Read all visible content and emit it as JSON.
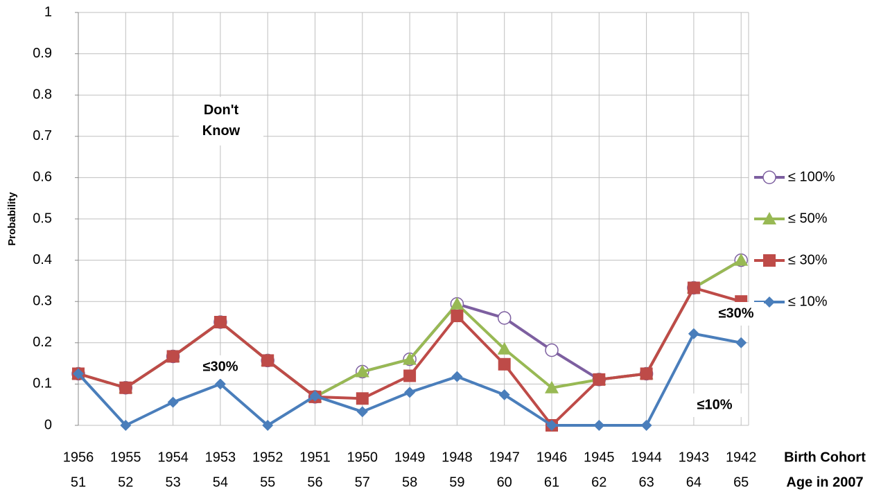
{
  "chart_data": {
    "type": "line",
    "y_label": "Probability",
    "x_label": "Birth Cohort",
    "x2_label": "Age in 2007",
    "categories": [
      "1956",
      "1955",
      "1954",
      "1953",
      "1952",
      "1951",
      "1950",
      "1949",
      "1948",
      "1947",
      "1946",
      "1945",
      "1944",
      "1943",
      "1942"
    ],
    "ages": [
      "51",
      "52",
      "53",
      "54",
      "55",
      "56",
      "57",
      "58",
      "59",
      "60",
      "61",
      "62",
      "63",
      "64",
      "65"
    ],
    "ylim": [
      0,
      1
    ],
    "yticks": [
      0,
      0.1,
      0.2,
      0.3,
      0.4,
      0.5,
      0.6,
      0.7,
      0.8,
      0.9,
      1
    ],
    "grid": true,
    "legend": "right",
    "series": [
      {
        "name": "≤ 100%",
        "color": "#7d5fa0",
        "marker": "circle-open",
        "values": [
          0.125,
          0.091,
          0.167,
          0.25,
          0.157,
          0.069,
          0.13,
          0.16,
          0.294,
          0.26,
          0.182,
          0.111,
          0.125,
          0.333,
          0.4
        ]
      },
      {
        "name": "≤ 50%",
        "color": "#98b954",
        "marker": "triangle",
        "values": [
          0.125,
          0.091,
          0.167,
          0.25,
          0.157,
          0.069,
          0.13,
          0.16,
          0.294,
          0.185,
          0.091,
          0.111,
          0.125,
          0.333,
          0.4
        ]
      },
      {
        "name": "≤ 30%",
        "color": "#be4b48",
        "marker": "square",
        "values": [
          0.125,
          0.091,
          0.167,
          0.25,
          0.157,
          0.069,
          0.065,
          0.12,
          0.265,
          0.148,
          0,
          0.111,
          0.125,
          0.333,
          0.3
        ]
      },
      {
        "name": "≤ 10%",
        "color": "#4a7ebb",
        "marker": "diamond",
        "values": [
          0.125,
          0,
          0.056,
          0.1,
          0,
          0.071,
          0.033,
          0.08,
          0.118,
          0.074,
          0,
          0,
          0,
          0.222,
          0.2
        ]
      }
    ],
    "annotations": [
      "Don't Know",
      "≤30%",
      "≤30%",
      "≤10%"
    ]
  }
}
